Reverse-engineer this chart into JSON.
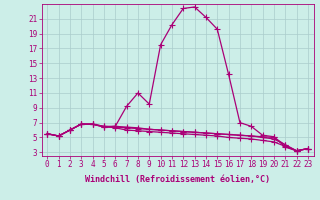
{
  "xlabel": "Windchill (Refroidissement éolien,°C)",
  "background_color": "#cceee8",
  "line_color": "#aa0077",
  "x_values": [
    0,
    1,
    2,
    3,
    4,
    5,
    6,
    7,
    8,
    9,
    10,
    11,
    12,
    13,
    14,
    15,
    16,
    17,
    18,
    19,
    20,
    21,
    22,
    23
  ],
  "series": [
    [
      5.5,
      5.2,
      6.0,
      6.8,
      6.8,
      6.4,
      6.5,
      9.2,
      11.0,
      9.5,
      17.5,
      20.2,
      22.4,
      22.6,
      21.2,
      19.6,
      13.5,
      7.0,
      6.5,
      5.3,
      5.1,
      3.7,
      3.2,
      3.5
    ],
    [
      5.5,
      5.2,
      6.0,
      6.8,
      6.8,
      6.5,
      6.5,
      6.4,
      6.3,
      6.1,
      6.0,
      5.9,
      5.8,
      5.7,
      5.6,
      5.5,
      5.4,
      5.3,
      5.2,
      5.0,
      4.8,
      4.0,
      3.2,
      3.5
    ],
    [
      5.5,
      5.2,
      6.0,
      6.8,
      6.8,
      6.5,
      6.3,
      6.0,
      5.9,
      5.8,
      5.7,
      5.6,
      5.5,
      5.4,
      5.3,
      5.2,
      5.0,
      4.9,
      4.8,
      4.6,
      4.4,
      3.8,
      3.2,
      3.5
    ],
    [
      5.5,
      5.2,
      6.0,
      6.8,
      6.8,
      6.4,
      6.4,
      6.3,
      6.2,
      6.1,
      6.0,
      5.9,
      5.8,
      5.7,
      5.6,
      5.5,
      5.4,
      5.3,
      5.2,
      5.1,
      5.0,
      4.0,
      3.2,
      3.5
    ]
  ],
  "ylim_min": 2.5,
  "ylim_max": 23.0,
  "xlim_min": -0.5,
  "xlim_max": 23.5,
  "yticks": [
    3,
    5,
    7,
    9,
    11,
    13,
    15,
    17,
    19,
    21
  ],
  "xticks": [
    0,
    1,
    2,
    3,
    4,
    5,
    6,
    7,
    8,
    9,
    10,
    11,
    12,
    13,
    14,
    15,
    16,
    17,
    18,
    19,
    20,
    21,
    22,
    23
  ],
  "grid_color": "#aacccc",
  "marker": "+",
  "marker_size": 5,
  "linewidth": 0.9,
  "tick_fontsize": 5.5,
  "xlabel_fontsize": 6.0
}
